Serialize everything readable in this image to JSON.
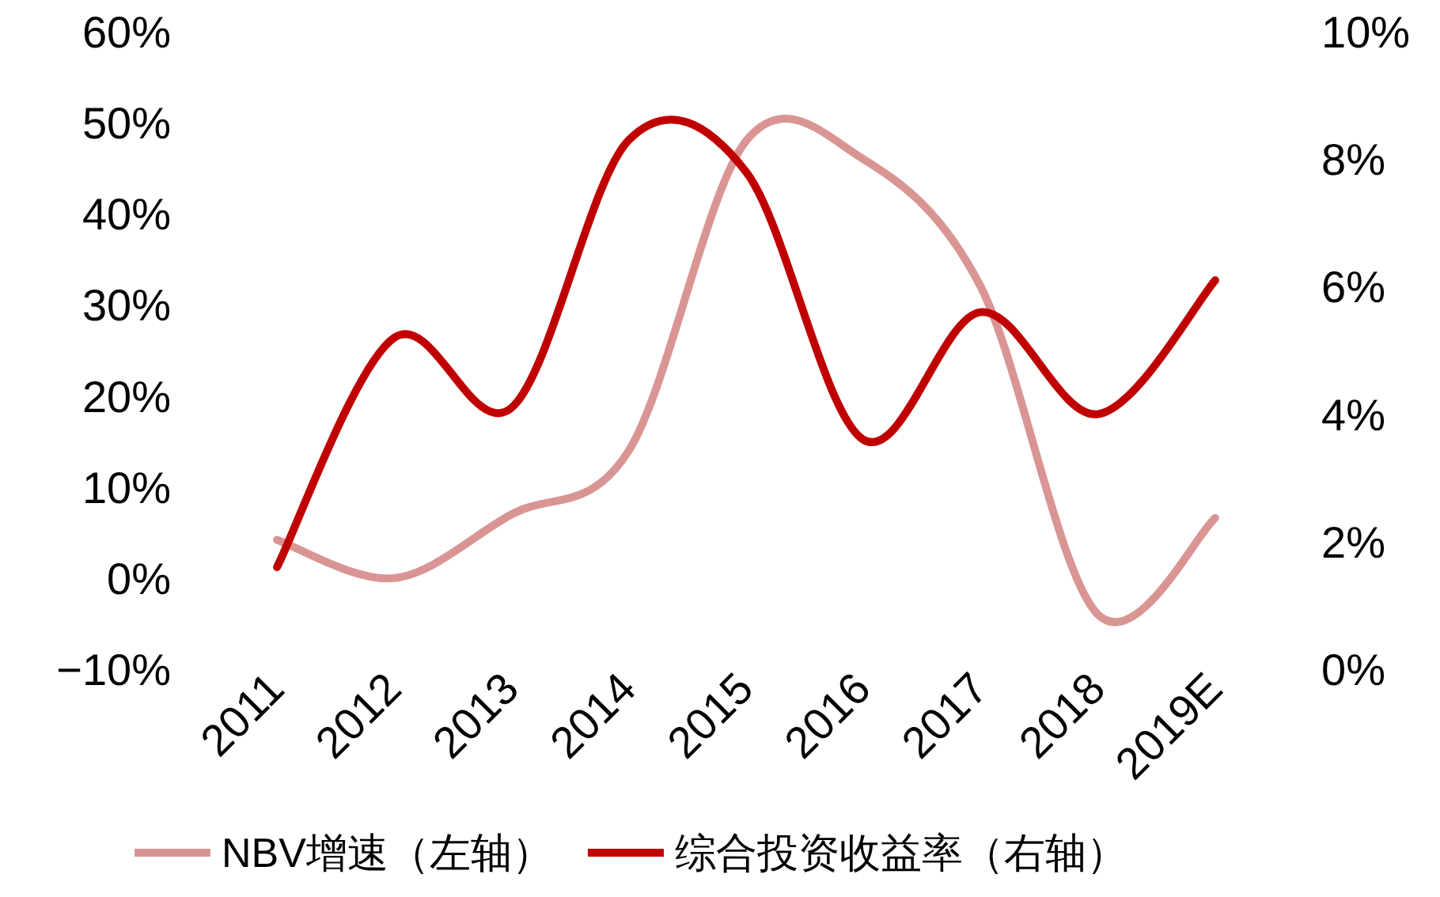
{
  "chart_data": {
    "type": "line",
    "categories": [
      "2011",
      "2012",
      "2013",
      "2014",
      "2015",
      "2016",
      "2017",
      "2018",
      "2019E"
    ],
    "series": [
      {
        "name": "NBV增速（左轴）",
        "color": "#d99594",
        "values": [
          4.2,
          0,
          7,
          14,
          48,
          46,
          32,
          -4,
          6.6
        ]
      },
      {
        "name": "综合投资收益率（右轴）",
        "color": "#c00000",
        "axis": "y2",
        "values": [
          1.6,
          5.2,
          4.1,
          8.3,
          7.8,
          3.6,
          5.6,
          4.0,
          6.1
        ]
      }
    ],
    "ylim": [
      -10,
      60
    ],
    "yticks": [
      {
        "value": -10,
        "label": "−10%"
      },
      {
        "value": 0,
        "label": "0%"
      },
      {
        "value": 10,
        "label": "10%"
      },
      {
        "value": 20,
        "label": "20%"
      },
      {
        "value": 30,
        "label": "30%"
      },
      {
        "value": 40,
        "label": "40%"
      },
      {
        "value": 50,
        "label": "50%"
      },
      {
        "value": 60,
        "label": "60%"
      }
    ],
    "y2lim": [
      0,
      10
    ],
    "y2ticks": [
      {
        "value": 0,
        "label": "0%"
      },
      {
        "value": 2,
        "label": "2%"
      },
      {
        "value": 4,
        "label": "4%"
      },
      {
        "value": 6,
        "label": "6%"
      },
      {
        "value": 8,
        "label": "8%"
      },
      {
        "value": 10,
        "label": "10%"
      }
    ],
    "grid": false,
    "legend": "bottom",
    "marker": "none",
    "line_style": "solid"
  }
}
